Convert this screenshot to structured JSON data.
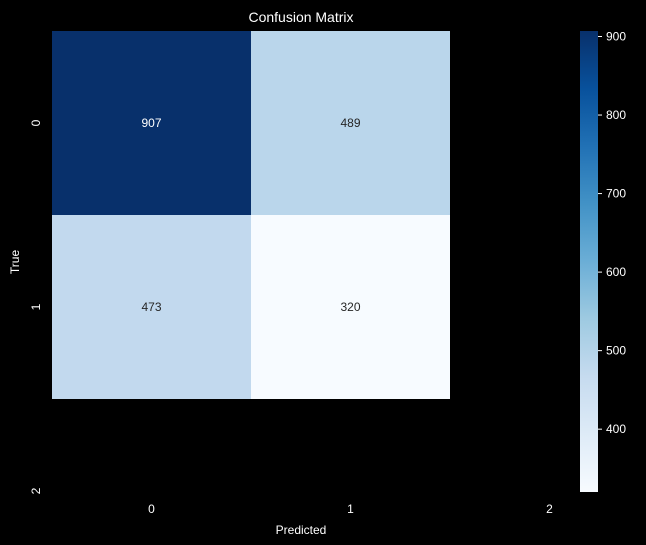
{
  "chart_data": {
    "type": "heatmap",
    "title": "Confusion Matrix",
    "xlabel": "Predicted",
    "ylabel": "True",
    "x_ticks": [
      "0",
      "1",
      "2"
    ],
    "y_ticks": [
      "0",
      "1",
      "2"
    ],
    "cells": [
      {
        "row": 0,
        "col": 0,
        "value": 907,
        "label": "907",
        "color": "#08306b"
      },
      {
        "row": 0,
        "col": 1,
        "value": 489,
        "label": "489",
        "color": "#bad6eb"
      },
      {
        "row": 1,
        "col": 0,
        "value": 473,
        "label": "473",
        "color": "#c2d9ee"
      },
      {
        "row": 1,
        "col": 1,
        "value": 320,
        "label": "320",
        "color": "#f7fbff"
      }
    ],
    "colorbar": {
      "colormap": "Blues",
      "range": [
        320,
        907
      ],
      "ticks": [
        "900",
        "800",
        "700",
        "600",
        "500",
        "400"
      ],
      "tick_values": [
        900,
        800,
        700,
        600,
        500,
        400
      ]
    },
    "grid": false,
    "colors": {
      "background": "#000000",
      "text": "#ffffff",
      "dark_cell_text": "#ffffff",
      "light_cell_text": "#262626",
      "colormap_stops": [
        "#f7fbff",
        "#deebf7",
        "#c6dbef",
        "#9ecae1",
        "#6baed6",
        "#4292c6",
        "#2171b5",
        "#08519c",
        "#08306b"
      ]
    }
  }
}
